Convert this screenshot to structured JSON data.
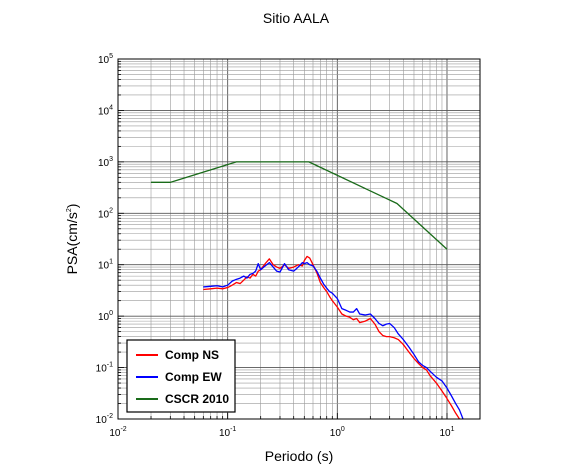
{
  "chart_data": {
    "type": "line",
    "title": "Sitio AALA",
    "xlabel": "Periodo (s)",
    "ylabel_base": "PSA(cm/s",
    "ylabel_sup": "2",
    "ylabel_end": ")",
    "x_scale": "log",
    "y_scale": "log",
    "xlim": [
      0.01,
      20
    ],
    "ylim": [
      0.01,
      100000
    ],
    "grid": true,
    "legend_position": "bottom-left",
    "x_ticks": [
      {
        "base": "10",
        "exp": "-2"
      },
      {
        "base": "10",
        "exp": "-1"
      },
      {
        "base": "10",
        "exp": "0"
      },
      {
        "base": "10",
        "exp": "1"
      }
    ],
    "y_ticks": [
      {
        "base": "10",
        "exp": "-2"
      },
      {
        "base": "10",
        "exp": "-1"
      },
      {
        "base": "10",
        "exp": "0"
      },
      {
        "base": "10",
        "exp": "1"
      },
      {
        "base": "10",
        "exp": "2"
      },
      {
        "base": "10",
        "exp": "3"
      },
      {
        "base": "10",
        "exp": "4"
      },
      {
        "base": "10",
        "exp": "5"
      }
    ],
    "series": [
      {
        "name": "Comp NS",
        "color": "#ff0000",
        "x": [
          0.06,
          0.07,
          0.08,
          0.09,
          0.1,
          0.11,
          0.12,
          0.13,
          0.14,
          0.15,
          0.16,
          0.17,
          0.18,
          0.19,
          0.2,
          0.22,
          0.24,
          0.26,
          0.28,
          0.3,
          0.33,
          0.36,
          0.4,
          0.44,
          0.48,
          0.5,
          0.53,
          0.56,
          0.6,
          0.65,
          0.7,
          0.75,
          0.8,
          0.85,
          0.9,
          1.0,
          1.1,
          1.2,
          1.3,
          1.4,
          1.5,
          1.6,
          1.8,
          2.0,
          2.2,
          2.4,
          2.6,
          2.8,
          3.0,
          3.3,
          3.6,
          4.0,
          4.5,
          5.0,
          5.5,
          6.0,
          6.5,
          7.0,
          8.0,
          9.0,
          10.0,
          11.0,
          12.0,
          13.0
        ],
        "y": [
          3.3,
          3.4,
          3.5,
          3.4,
          3.6,
          4.0,
          4.5,
          4.3,
          5.0,
          5.8,
          5.5,
          6.5,
          6.0,
          7.5,
          8.0,
          10.5,
          13.0,
          10.0,
          9.0,
          8.5,
          10.0,
          8.5,
          9.0,
          10.0,
          9.5,
          12.0,
          14.5,
          13.5,
          10.0,
          7.0,
          4.5,
          3.6,
          3.0,
          2.4,
          2.0,
          1.5,
          1.1,
          1.0,
          0.95,
          0.85,
          0.9,
          0.75,
          0.8,
          0.9,
          0.7,
          0.5,
          0.42,
          0.4,
          0.4,
          0.38,
          0.35,
          0.28,
          0.2,
          0.15,
          0.12,
          0.1,
          0.09,
          0.07,
          0.05,
          0.035,
          0.025,
          0.018,
          0.013,
          0.01
        ]
      },
      {
        "name": "Comp EW",
        "color": "#0000ff",
        "x": [
          0.06,
          0.07,
          0.08,
          0.09,
          0.1,
          0.11,
          0.12,
          0.13,
          0.14,
          0.15,
          0.16,
          0.17,
          0.18,
          0.19,
          0.2,
          0.22,
          0.24,
          0.26,
          0.28,
          0.3,
          0.33,
          0.36,
          0.4,
          0.44,
          0.48,
          0.5,
          0.53,
          0.56,
          0.6,
          0.65,
          0.7,
          0.75,
          0.8,
          0.85,
          0.9,
          1.0,
          1.1,
          1.2,
          1.3,
          1.4,
          1.5,
          1.6,
          1.8,
          2.0,
          2.2,
          2.4,
          2.6,
          2.8,
          3.0,
          3.3,
          3.6,
          4.0,
          4.5,
          5.0,
          5.5,
          6.0,
          6.5,
          7.0,
          8.0,
          9.0,
          10.0,
          11.0,
          12.0,
          13.0,
          14.0
        ],
        "y": [
          3.7,
          3.8,
          3.9,
          3.7,
          4.0,
          4.8,
          5.2,
          5.5,
          6.0,
          5.5,
          6.5,
          6.8,
          7.5,
          10.5,
          8.0,
          9.5,
          11.0,
          9.0,
          7.5,
          7.2,
          10.5,
          8.0,
          7.5,
          9.0,
          11.0,
          10.5,
          11.0,
          10.0,
          9.5,
          7.5,
          5.5,
          4.2,
          3.5,
          3.0,
          2.8,
          2.2,
          1.4,
          1.3,
          1.2,
          1.2,
          1.4,
          1.1,
          1.05,
          1.1,
          0.9,
          0.72,
          0.65,
          0.7,
          0.72,
          0.6,
          0.45,
          0.35,
          0.25,
          0.18,
          0.13,
          0.11,
          0.1,
          0.085,
          0.065,
          0.055,
          0.04,
          0.028,
          0.02,
          0.015,
          0.01
        ]
      },
      {
        "name": "CSCR 2010",
        "color": "#1a6b1a",
        "x": [
          0.02,
          0.03,
          0.12,
          0.55,
          3.5,
          10.0
        ],
        "y": [
          400,
          400,
          1000,
          1000,
          155,
          20
        ]
      }
    ]
  }
}
